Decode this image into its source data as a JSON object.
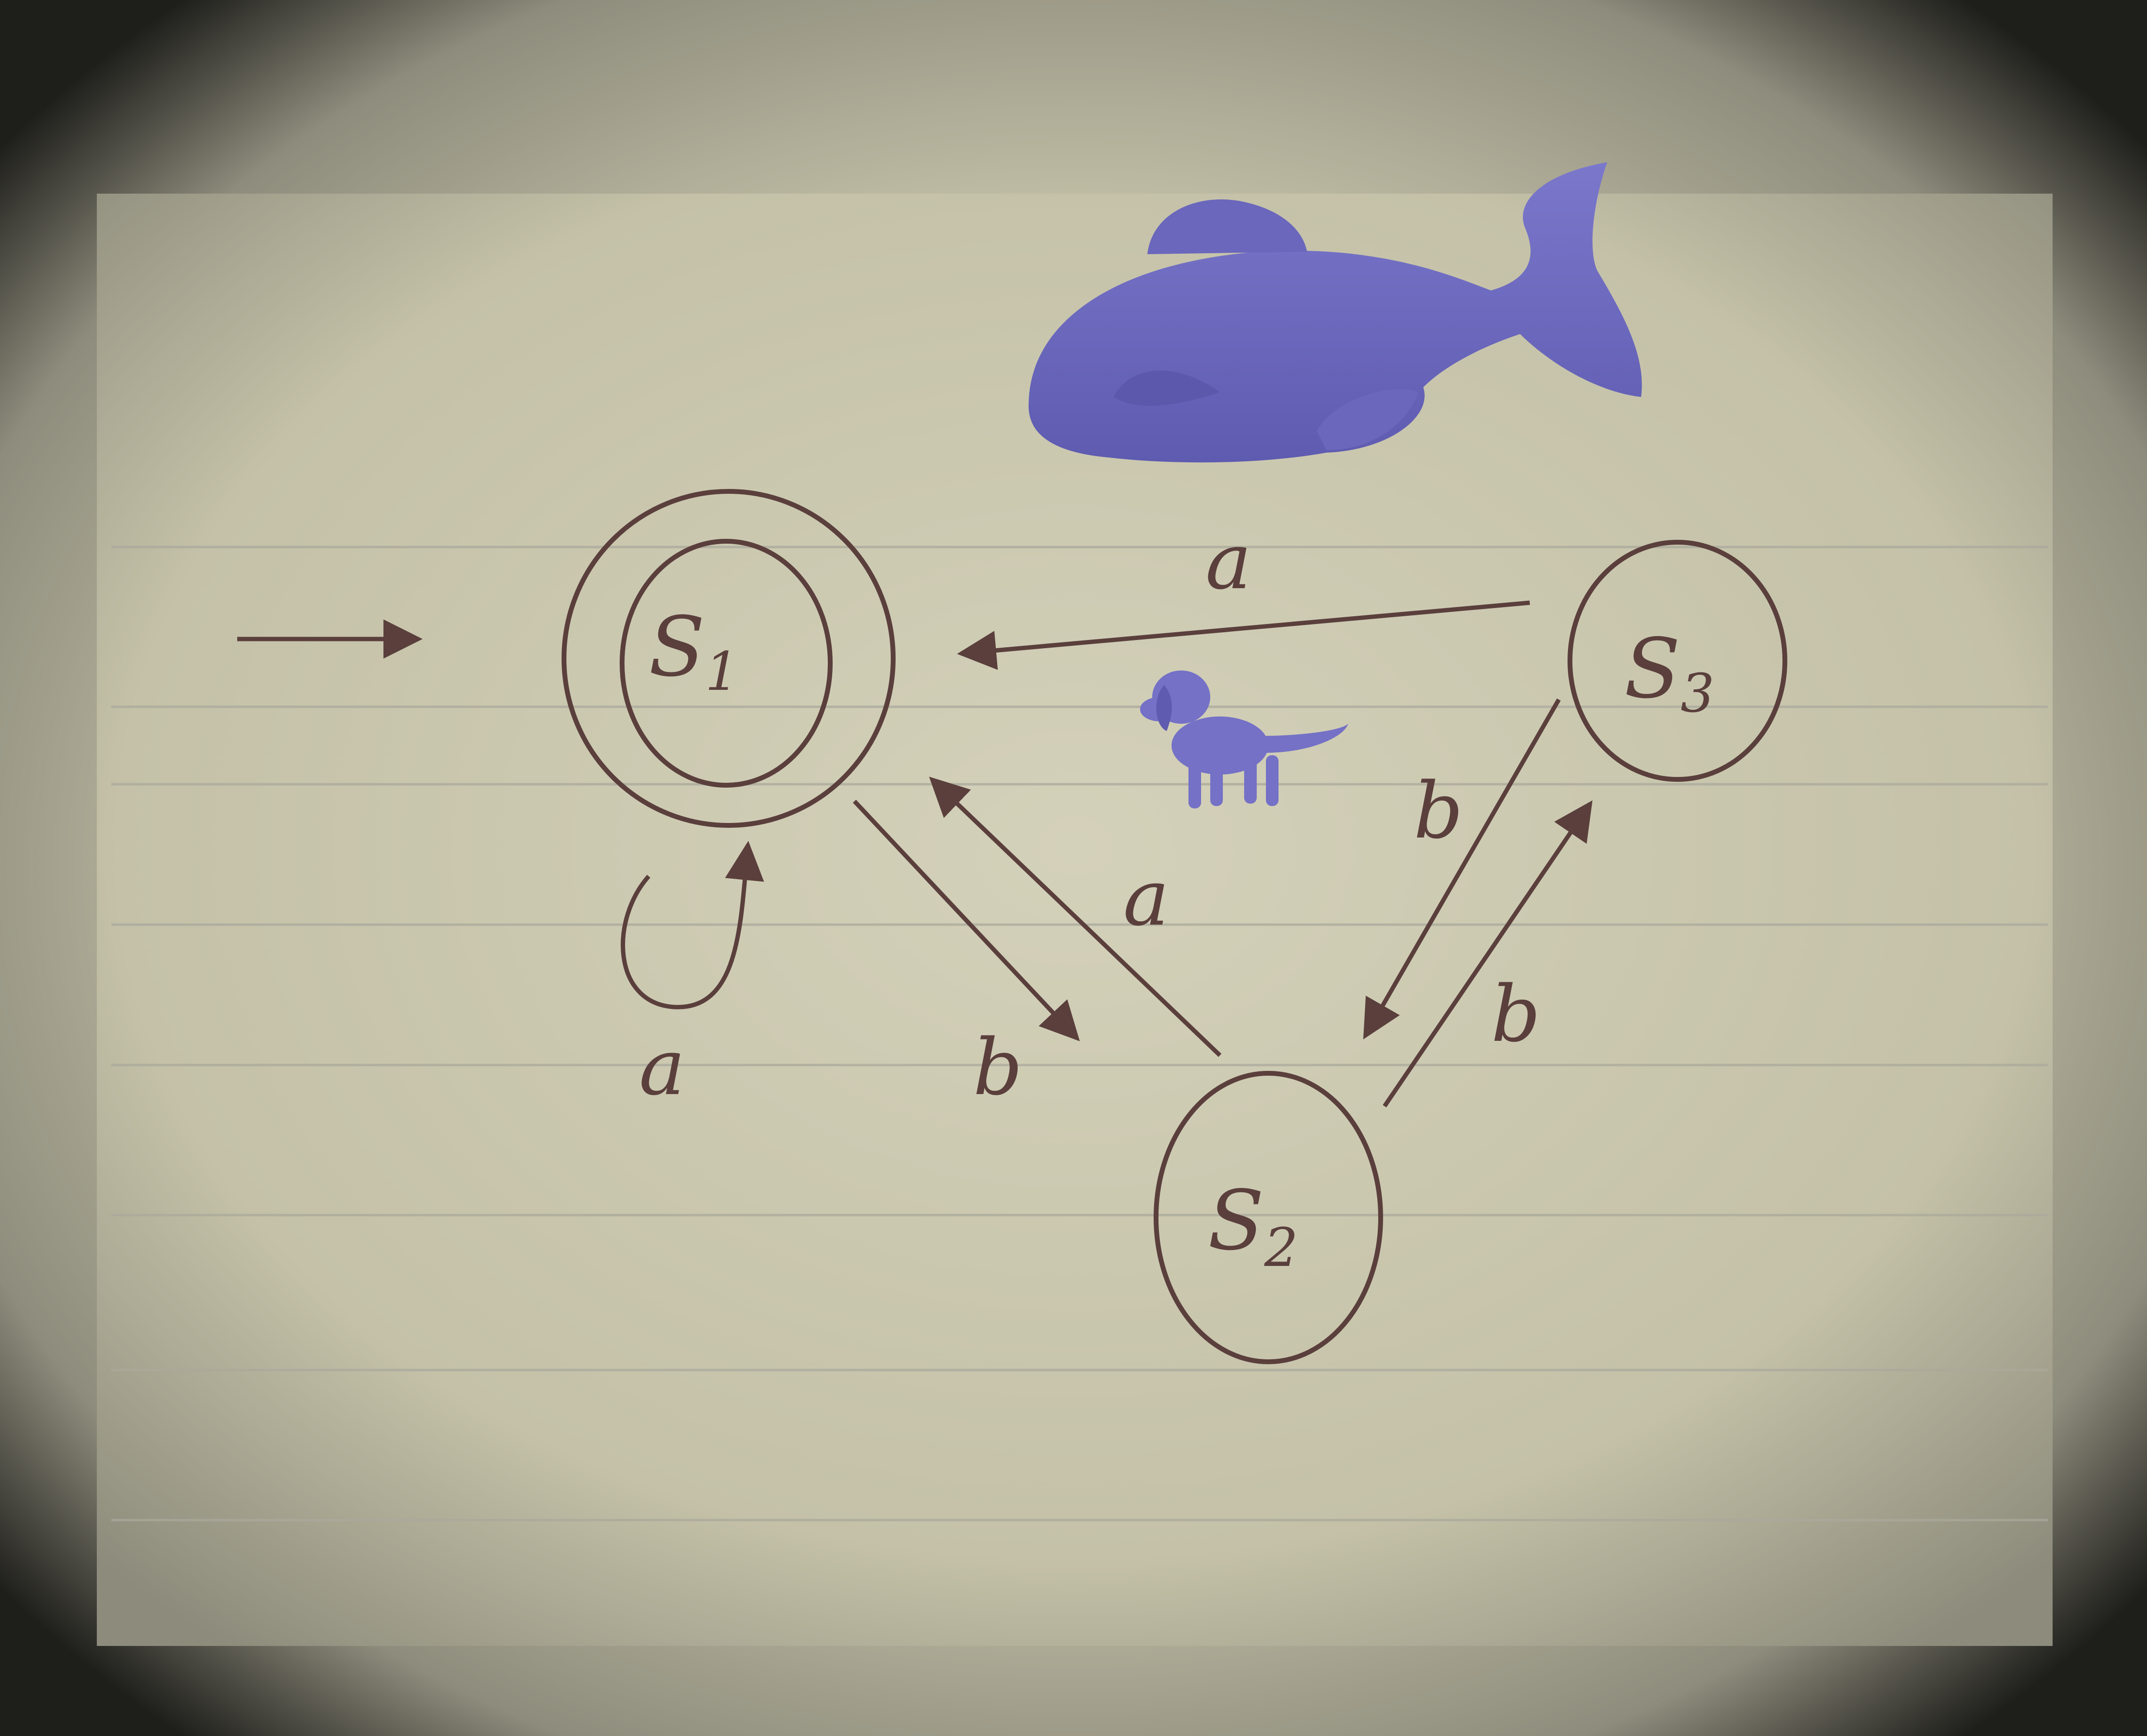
{
  "diagram": {
    "type": "finite-automaton",
    "states": [
      {
        "id": "s1",
        "label": "S",
        "subscript": "1",
        "accepting": true,
        "start": true
      },
      {
        "id": "s2",
        "label": "S",
        "subscript": "2",
        "accepting": false,
        "start": false
      },
      {
        "id": "s3",
        "label": "S",
        "subscript": "3",
        "accepting": false,
        "start": false
      }
    ],
    "transitions": [
      {
        "from": "s1",
        "to": "s1",
        "symbol": "a"
      },
      {
        "from": "s1",
        "to": "s2",
        "symbol": "b"
      },
      {
        "from": "s2",
        "to": "s1",
        "symbol": "a"
      },
      {
        "from": "s3",
        "to": "s1",
        "symbol": "a"
      },
      {
        "from": "s3",
        "to": "s2",
        "symbol": "b"
      },
      {
        "from": "s2",
        "to": "s3",
        "symbol": "b"
      }
    ]
  },
  "colors": {
    "ink": "#5a3f3c",
    "paper": "#c9c6ae",
    "rule_line": "#a9a89c",
    "vignette": "#1e1e1b",
    "sticker": "#6f6cc0"
  },
  "stickers": [
    {
      "name": "whale-sticker"
    },
    {
      "name": "dog-sticker"
    }
  ]
}
